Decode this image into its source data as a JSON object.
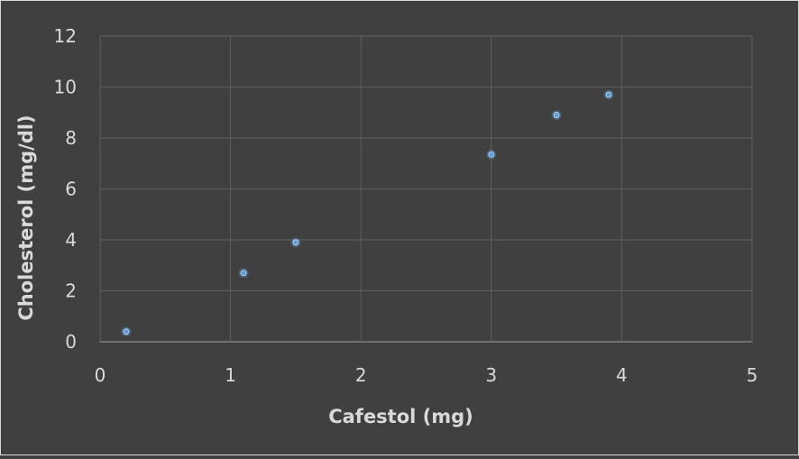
{
  "chart_data": {
    "type": "scatter",
    "xlabel": "Cafestol (mg)",
    "ylabel": "Cholesterol (mg/dl)",
    "xlim": [
      0,
      5
    ],
    "ylim": [
      0,
      12
    ],
    "xticks": [
      0,
      1,
      2,
      3,
      4,
      5
    ],
    "yticks": [
      0,
      2,
      4,
      6,
      8,
      10,
      12
    ],
    "grid": true,
    "legend": "none",
    "series": [
      {
        "color": "#5b9bd5",
        "points": [
          {
            "x": 0.2,
            "y": 0.4
          },
          {
            "x": 1.1,
            "y": 2.7
          },
          {
            "x": 1.5,
            "y": 3.9
          },
          {
            "x": 3.0,
            "y": 7.35
          },
          {
            "x": 3.5,
            "y": 8.9
          },
          {
            "x": 3.9,
            "y": 9.7
          }
        ]
      }
    ]
  },
  "colors": {
    "background": "#404040",
    "text": "#d9d9d9",
    "grid": "#5f5f5f",
    "marker": "#5b9bd5"
  }
}
